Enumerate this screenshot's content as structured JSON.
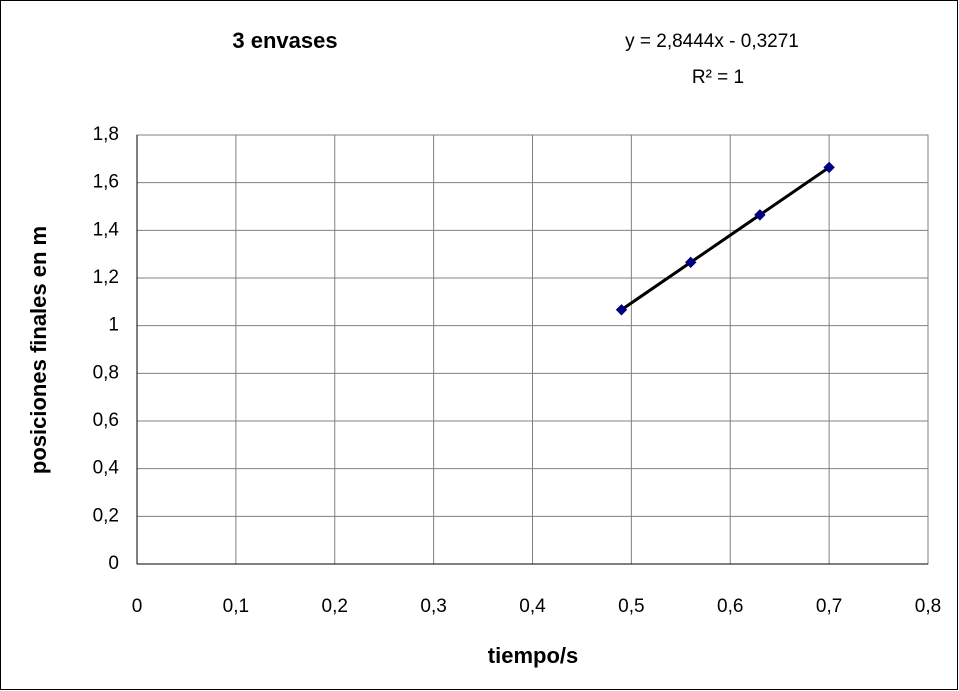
{
  "chart_data": {
    "type": "scatter",
    "title": "3 envases",
    "annotations": [
      "y = 2,8444x - 0,3271",
      "R² = 1"
    ],
    "x_label": "tiempo/s",
    "y_label": "posiciones finales en m",
    "series": [
      {
        "name": "posiciones",
        "color": "#000080",
        "x": [
          0.49,
          0.56,
          0.63,
          0.7
        ],
        "values": [
          1.0667,
          1.2658,
          1.4649,
          1.664
        ]
      }
    ],
    "trendline_color": "#000000",
    "xlim": [
      0,
      0.8
    ],
    "xticks": [
      0,
      {
        "value": 0.1,
        "label": "0,1"
      },
      {
        "value": 0.2,
        "label": "0,2"
      },
      {
        "value": 0.3,
        "label": "0,3"
      },
      {
        "value": 0.4,
        "label": "0,4"
      },
      {
        "value": 0.5,
        "label": "0,5"
      },
      {
        "value": 0.6,
        "label": "0,6"
      },
      {
        "value": 0.7,
        "label": "0,7"
      },
      {
        "value": 0.8,
        "label": "0,8"
      }
    ],
    "ylim": [
      0,
      1.8
    ],
    "yticks": [
      0,
      {
        "value": 0.2,
        "label": "0,2"
      },
      {
        "value": 0.4,
        "label": "0,4"
      },
      {
        "value": 0.6,
        "label": "0,6"
      },
      {
        "value": 0.8,
        "label": "0,8"
      },
      1,
      {
        "value": 1.2,
        "label": "1,2"
      },
      {
        "value": 1.4,
        "label": "1,4"
      },
      {
        "value": 1.6,
        "label": "1,6"
      },
      {
        "value": 1.8,
        "label": "1,8"
      }
    ],
    "grid": true
  }
}
